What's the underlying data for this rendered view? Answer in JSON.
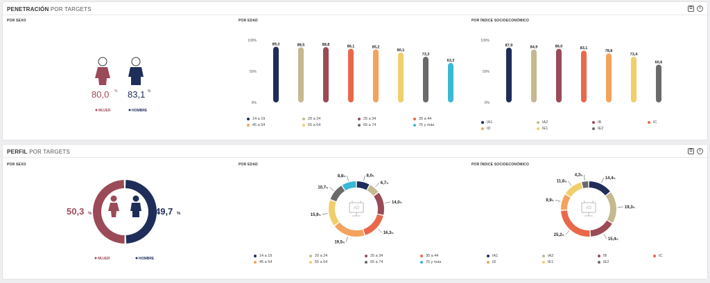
{
  "panels": [
    {
      "title_bold": "PENETRACIÓN",
      "title_rest": "POR TARGETS",
      "sections": {
        "sex": "POR SEXO",
        "age": "POR EDAD",
        "socio": "POR ÍNDICE SOCIOECONÓMICO"
      }
    },
    {
      "title_bold": "PERFIL",
      "title_rest": "POR TARGETS",
      "sections": {
        "sex": "POR SEXO",
        "age": "POR EDAD",
        "socio": "POR ÍNDICE SOCIOECONÓMICO"
      }
    }
  ],
  "icons": [
    "copy-icon",
    "info-icon"
  ],
  "penetration_sex": {
    "female": {
      "value": "80,0",
      "unit": "%",
      "label": "MUJER",
      "color": "#9b4a57"
    },
    "male": {
      "value": "83,1",
      "unit": "%",
      "label": "HOMBRE",
      "color": "#1f2d5a"
    }
  },
  "profile_sex": {
    "female": {
      "value": "50,3",
      "unit": "%",
      "label": "MUJER",
      "color": "#9b4a57"
    },
    "male": {
      "value": "49,7",
      "unit": "%",
      "label": "HOMBRE",
      "color": "#1f2d5a"
    },
    "female_share": 50.3
  },
  "age_groups": [
    {
      "label": "14 a 19",
      "color": "#1f2d5a"
    },
    {
      "label": "20 a 24",
      "color": "#c4b98f"
    },
    {
      "label": "25 a 34",
      "color": "#9b4a57"
    },
    {
      "label": "35 a 44",
      "color": "#e9684a"
    },
    {
      "label": "45 a 54",
      "color": "#f3a35d"
    },
    {
      "label": "55 a 64",
      "color": "#f0cf6b"
    },
    {
      "label": "65 a 74",
      "color": "#6a6a6a"
    },
    {
      "label": "75 y más",
      "color": "#3ab8d6"
    }
  ],
  "socio_groups": [
    {
      "label": "IA1",
      "color": "#1f2d5a"
    },
    {
      "label": "IA2",
      "color": "#c4b98f"
    },
    {
      "label": "IB",
      "color": "#9b4a57"
    },
    {
      "label": "IC",
      "color": "#e9684a"
    },
    {
      "label": "ID",
      "color": "#f3a35d"
    },
    {
      "label": "IE1",
      "color": "#f0cf6b"
    },
    {
      "label": "IE2",
      "color": "#6a6a6a"
    }
  ],
  "chart_data": [
    {
      "type": "bar",
      "id": "pen-age",
      "categories": [
        "14 a 19",
        "20 a 24",
        "25 a 34",
        "35 a 44",
        "45 a 54",
        "55 a 64",
        "65 a 74",
        "75 y más"
      ],
      "values": [
        89.3,
        88.5,
        88.8,
        86.1,
        85.2,
        80.1,
        73.3,
        63.3
      ],
      "labels": [
        "89,3",
        "88,5",
        "88,8",
        "86,1",
        "85,2",
        "80,1",
        "73,3",
        "63,3"
      ],
      "ylim": [
        0,
        100
      ],
      "yticks": [
        "0%",
        "50%",
        "100%"
      ]
    },
    {
      "type": "bar",
      "id": "pen-socio",
      "categories": [
        "IA1",
        "IA2",
        "IB",
        "IC",
        "ID",
        "IE1",
        "IE2"
      ],
      "values": [
        87.9,
        84.9,
        86.0,
        83.1,
        78.8,
        73.4,
        60.6
      ],
      "labels": [
        "87,9",
        "84,9",
        "86,0",
        "83,1",
        "78,8",
        "73,4",
        "60,6"
      ],
      "ylim": [
        0,
        100
      ],
      "yticks": [
        "0%",
        "50%",
        "100%"
      ]
    },
    {
      "type": "pie",
      "id": "prof-age",
      "categories": [
        "14 a 19",
        "20 a 24",
        "25 a 34",
        "35 a 44",
        "45 a 54",
        "55 a 64",
        "65 a 74",
        "75 y más"
      ],
      "values": [
        8.0,
        6.7,
        14.0,
        16.3,
        19.5,
        15.9,
        10.7,
        8.8
      ],
      "labels": [
        "8,0",
        "6,7",
        "14,0",
        "16,3",
        "19,5",
        "15,9",
        "10,7",
        "8,8"
      ],
      "unit": "%"
    },
    {
      "type": "pie",
      "id": "prof-socio",
      "categories": [
        "IA1",
        "IA2",
        "IB",
        "IC",
        "ID",
        "IE1",
        "IE2"
      ],
      "values": [
        14.4,
        19.3,
        15.4,
        25.2,
        9.9,
        11.6,
        4.3
      ],
      "labels": [
        "14,4",
        "19,3",
        "15,4",
        "25,2",
        "9,9",
        "11,6",
        "4,3"
      ],
      "unit": "%"
    }
  ]
}
